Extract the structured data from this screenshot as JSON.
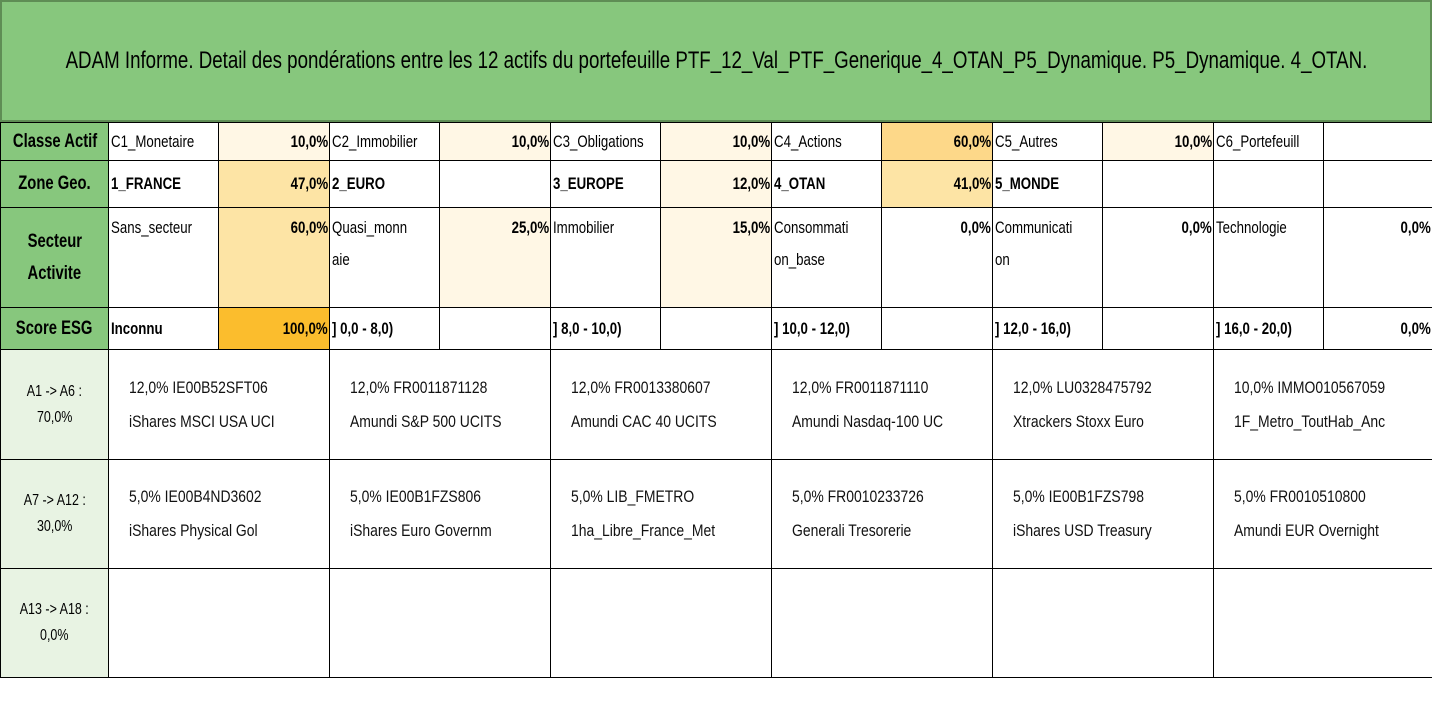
{
  "title": "ADAM Informe. Detail des pondérations entre les 12 actifs du portefeuille PTF_12_Val_PTF_Generique_4_OTAN_P5_Dynamique. P5_Dynamique. 4_OTAN.",
  "rows": {
    "classe": {
      "header": "Classe Actif",
      "cells": [
        {
          "label": "C1_Monetaire",
          "pct": "10,0%"
        },
        {
          "label": "C2_Immobilier",
          "pct": "10,0%"
        },
        {
          "label": "C3_Obligations",
          "pct": "10,0%"
        },
        {
          "label": "C4_Actions",
          "pct": "60,0%"
        },
        {
          "label": "C5_Autres",
          "pct": "10,0%"
        },
        {
          "label": "C6_Portefeuill",
          "pct": ""
        }
      ]
    },
    "zone": {
      "header": "Zone Geo.",
      "cells": [
        {
          "label": "1_FRANCE",
          "pct": "47,0%"
        },
        {
          "label": "2_EURO",
          "pct": ""
        },
        {
          "label": "3_EUROPE",
          "pct": "12,0%"
        },
        {
          "label": "4_OTAN",
          "pct": "41,0%"
        },
        {
          "label": "5_MONDE",
          "pct": ""
        },
        {
          "label": "",
          "pct": ""
        }
      ]
    },
    "secteur": {
      "header_1": "Secteur",
      "header_2": "Activite",
      "cells": [
        {
          "label_1": "Sans_secteur",
          "label_2": "",
          "pct": "60,0%"
        },
        {
          "label_1": "Quasi_monn",
          "label_2": "aie",
          "pct": "25,0%"
        },
        {
          "label_1": "Immobilier",
          "label_2": "",
          "pct": "15,0%"
        },
        {
          "label_1": "Consommati",
          "label_2": "on_base",
          "pct": "0,0%"
        },
        {
          "label_1": "Communicati",
          "label_2": "on",
          "pct": "0,0%"
        },
        {
          "label_1": "Technologie",
          "label_2": "",
          "pct": "0,0%"
        }
      ]
    },
    "esg": {
      "header": "Score ESG",
      "cells": [
        {
          "label": "Inconnu",
          "pct": "100,0%"
        },
        {
          "label": "] 0,0 - 8,0)",
          "pct": ""
        },
        {
          "label": "] 8,0 - 10,0)",
          "pct": ""
        },
        {
          "label": "] 10,0 - 12,0)",
          "pct": ""
        },
        {
          "label": "] 12,0 - 16,0)",
          "pct": ""
        },
        {
          "label": "] 16,0 - 20,0)",
          "pct": "0,0%"
        }
      ]
    }
  },
  "groups": [
    {
      "label_1": "A1 -> A6 :",
      "label_2": "70,0%",
      "assets": [
        {
          "line1": "12,0% IE00B52SFT06",
          "line2": "iShares MSCI USA UCI"
        },
        {
          "line1": "12,0% FR0011871128",
          "line2": "Amundi S&P 500 UCITS"
        },
        {
          "line1": "12,0% FR0013380607",
          "line2": "Amundi CAC 40 UCITS"
        },
        {
          "line1": "12,0% FR0011871110",
          "line2": "Amundi Nasdaq-100 UC"
        },
        {
          "line1": "12,0% LU0328475792",
          "line2": "Xtrackers Stoxx Euro"
        },
        {
          "line1": "10,0% IMMO010567059",
          "line2": "1F_Metro_ToutHab_Anc"
        }
      ]
    },
    {
      "label_1": "A7 -> A12 :",
      "label_2": "30,0%",
      "assets": [
        {
          "line1": "5,0% IE00B4ND3602",
          "line2": "iShares Physical Gol"
        },
        {
          "line1": "5,0% IE00B1FZS806",
          "line2": "iShares Euro Governm"
        },
        {
          "line1": "5,0% LIB_FMETRO",
          "line2": "1ha_Libre_France_Met"
        },
        {
          "line1": "5,0% FR0010233726",
          "line2": "Generali Tresorerie"
        },
        {
          "line1": "5,0% IE00B1FZS798",
          "line2": "iShares USD Treasury"
        },
        {
          "line1": "5,0% FR0010510800",
          "line2": "Amundi EUR Overnight"
        }
      ]
    },
    {
      "label_1": "A13 -> A18 :",
      "label_2": "0,0%",
      "assets": [
        {
          "line1": "",
          "line2": ""
        },
        {
          "line1": "",
          "line2": ""
        },
        {
          "line1": "",
          "line2": ""
        },
        {
          "line1": "",
          "line2": ""
        },
        {
          "line1": "",
          "line2": ""
        },
        {
          "line1": "",
          "line2": ""
        }
      ]
    }
  ],
  "colors": {
    "header_green": "#87c77d",
    "side_green": "#e8f3e3",
    "weight_low": "#fff7e5",
    "weight_mid": "#fde4a5",
    "weight_high": "#fcc34d",
    "weight_max": "#fbbd2d"
  }
}
